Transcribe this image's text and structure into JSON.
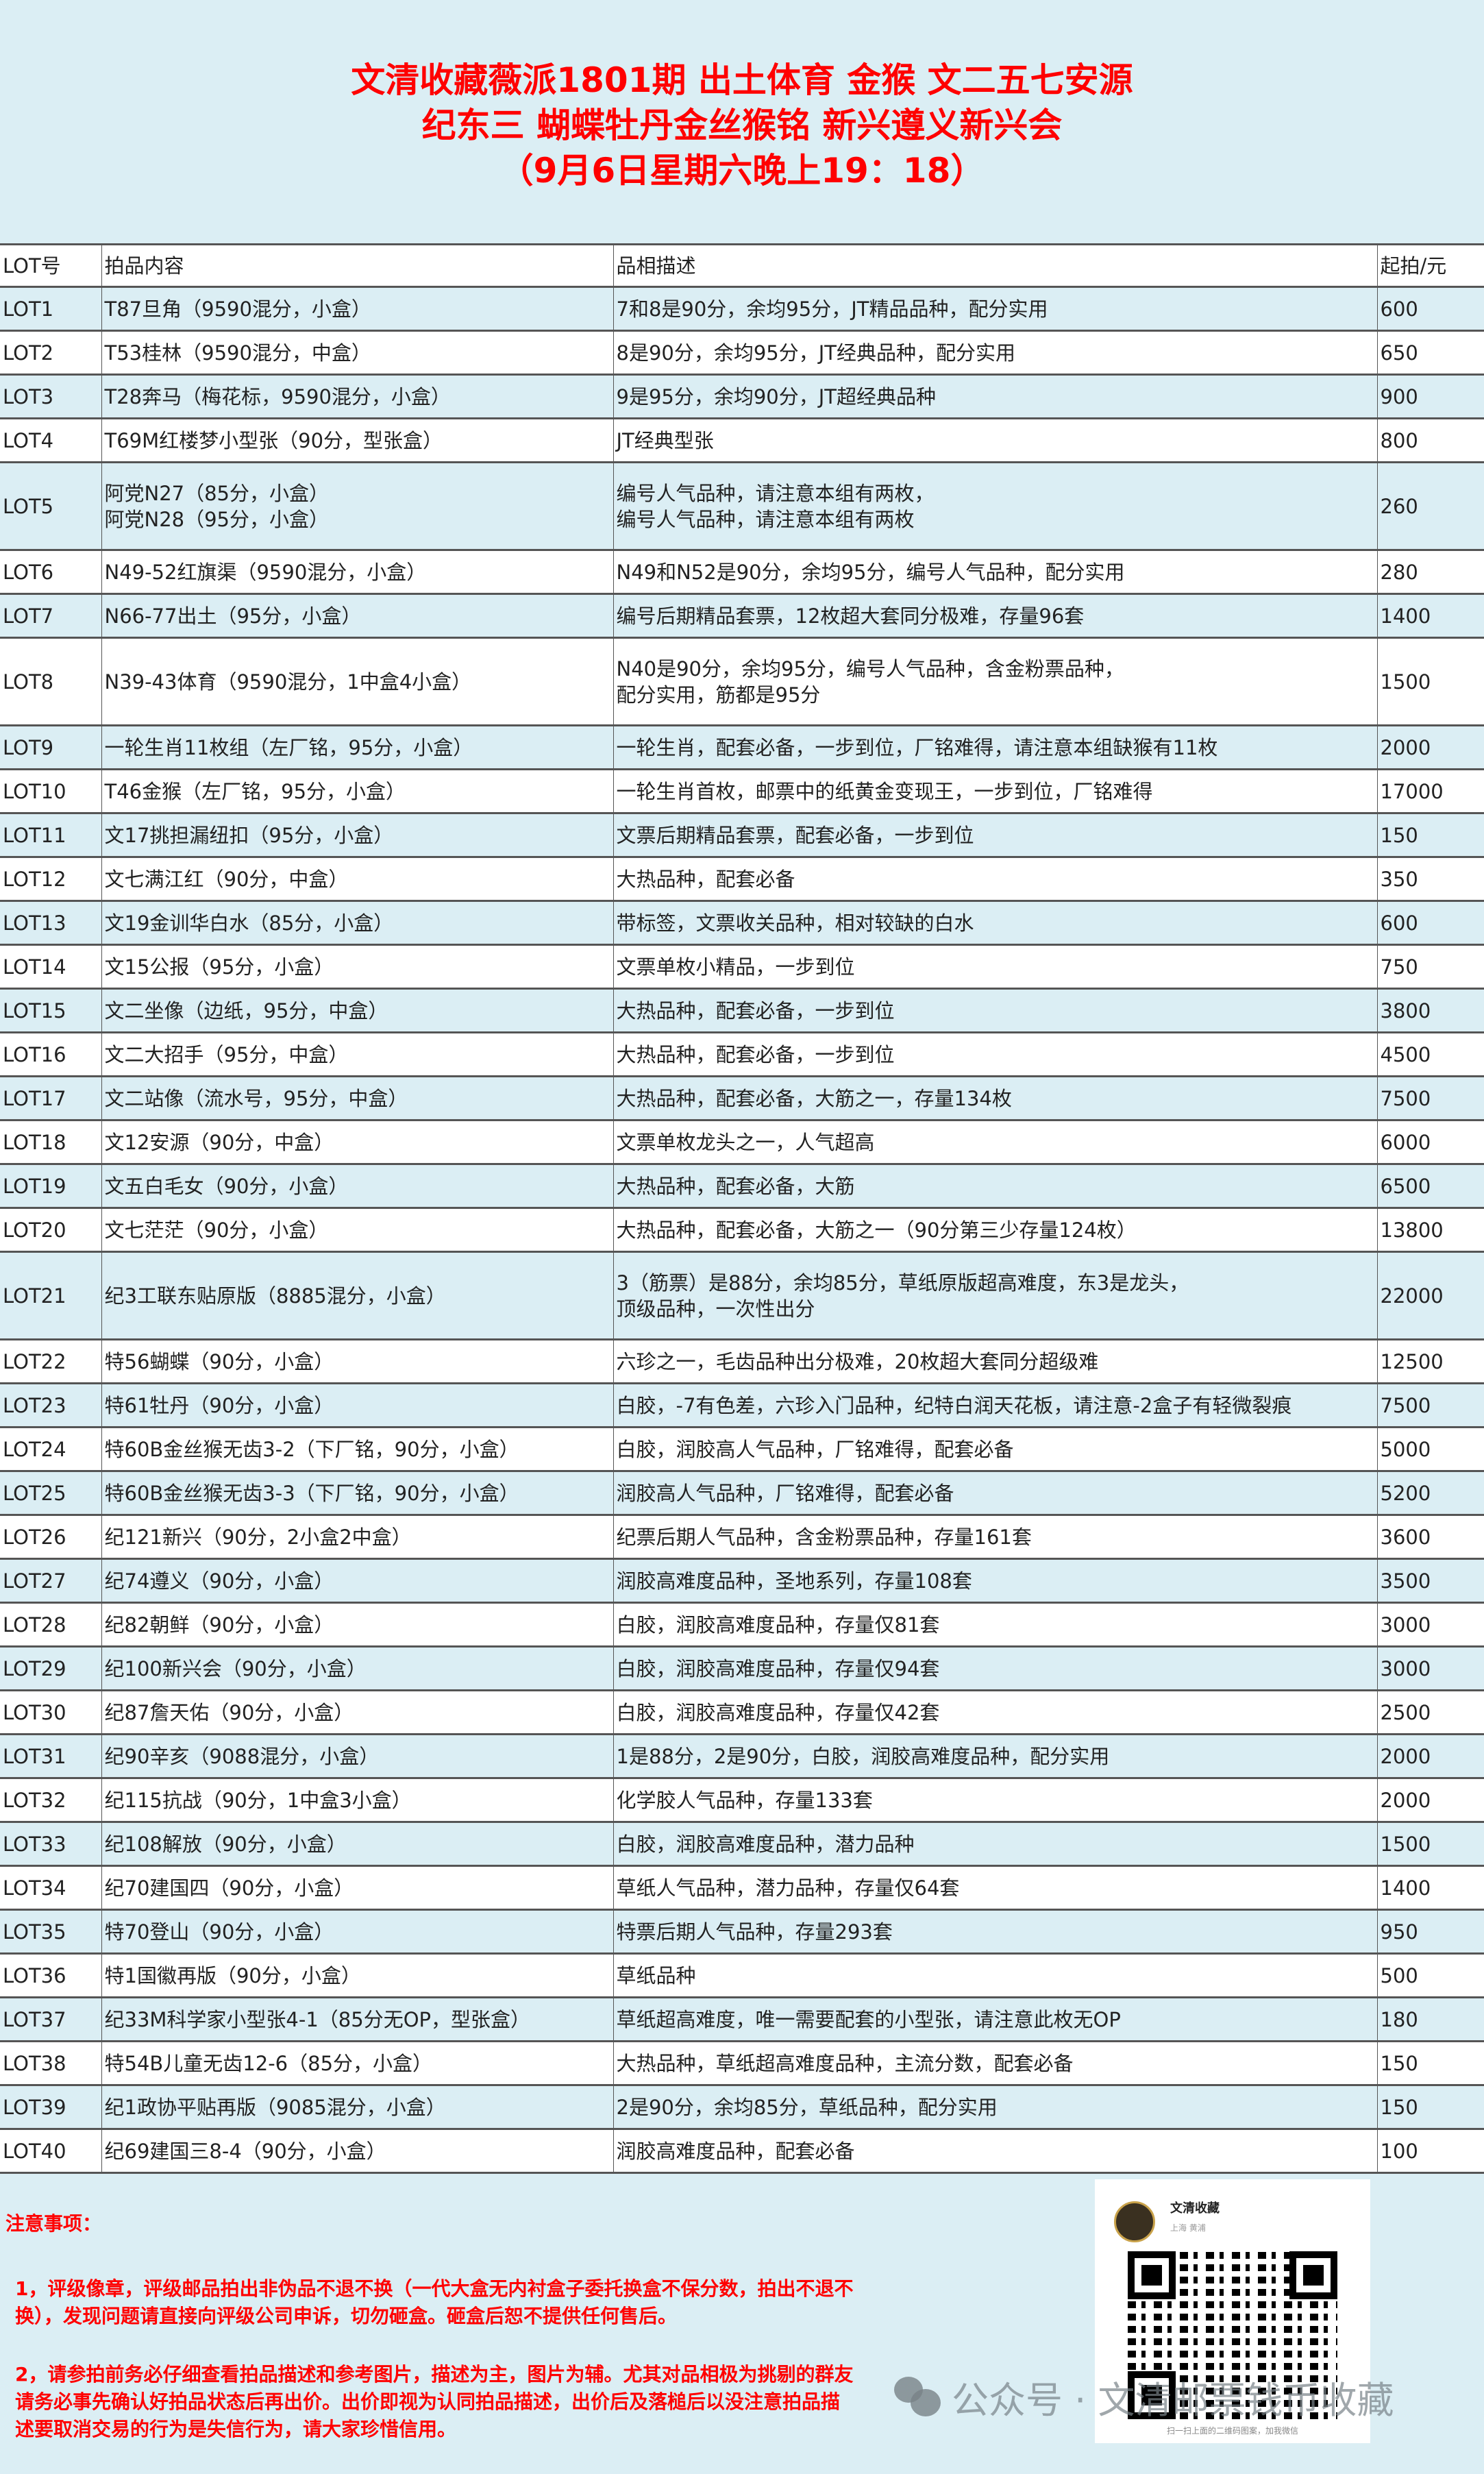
{
  "title": {
    "line1": "文清收藏薇派1801期  出土体育 金猴 文二五七安源",
    "line2": "纪东三 蝴蝶牡丹金丝猴铭 新兴遵义新兴会",
    "line3": "（9月6日星期六晚上19：18）"
  },
  "table": {
    "headers": [
      "LOT号",
      "拍品内容",
      "品相描述",
      "起拍/元"
    ],
    "rows": [
      {
        "lot": "LOT1",
        "item": [
          "T87旦角（9590混分，小盒）"
        ],
        "desc": [
          "7和8是90分，余均95分，JT精品品种，配分实用"
        ],
        "price": "600"
      },
      {
        "lot": "LOT2",
        "item": [
          "T53桂林（9590混分，中盒）"
        ],
        "desc": [
          "8是90分，余均95分，JT经典品种，配分实用"
        ],
        "price": "650"
      },
      {
        "lot": "LOT3",
        "item": [
          "T28奔马（梅花标，9590混分，小盒）"
        ],
        "desc": [
          "9是95分，余均90分，JT超经典品种"
        ],
        "price": "900"
      },
      {
        "lot": "LOT4",
        "item": [
          "T69M红楼梦小型张（90分，型张盒）"
        ],
        "desc": [
          "JT经典型张"
        ],
        "price": "800"
      },
      {
        "lot": "LOT5",
        "item": [
          "阿党N27（85分，小盒）",
          "阿党N28（95分，小盒）"
        ],
        "desc": [
          "编号人气品种，请注意本组有两枚，",
          "编号人气品种，请注意本组有两枚"
        ],
        "price": "260"
      },
      {
        "lot": "LOT6",
        "item": [
          "N49-52红旗渠（9590混分，小盒）"
        ],
        "desc": [
          "N49和N52是90分，余均95分，编号人气品种，配分实用"
        ],
        "price": "280"
      },
      {
        "lot": "LOT7",
        "item": [
          "N66-77出土（95分，小盒）"
        ],
        "desc": [
          "编号后期精品套票，12枚超大套同分极难，存量96套"
        ],
        "price": "1400"
      },
      {
        "lot": "LOT8",
        "item": [
          "N39-43体育（9590混分，1中盒4小盒）"
        ],
        "desc": [
          "N40是90分，余均95分，编号人气品种，含金粉票品种，",
          "配分实用，筋都是95分"
        ],
        "price": "1500"
      },
      {
        "lot": "LOT9",
        "item": [
          "一轮生肖11枚组（左厂铭，95分，小盒）"
        ],
        "desc": [
          "一轮生肖，配套必备，一步到位，厂铭难得，请注意本组缺猴有11枚"
        ],
        "price": "2000"
      },
      {
        "lot": "LOT10",
        "item": [
          "T46金猴（左厂铭，95分，小盒）"
        ],
        "desc": [
          "一轮生肖首枚，邮票中的纸黄金变现王，一步到位，厂铭难得"
        ],
        "price": "17000"
      },
      {
        "lot": "LOT11",
        "item": [
          "文17挑担漏纽扣（95分，小盒）"
        ],
        "desc": [
          "文票后期精品套票，配套必备，一步到位"
        ],
        "price": "150"
      },
      {
        "lot": "LOT12",
        "item": [
          "文七满江红（90分，中盒）"
        ],
        "desc": [
          "大热品种，配套必备"
        ],
        "price": "350"
      },
      {
        "lot": "LOT13",
        "item": [
          "文19金训华白水（85分，小盒）"
        ],
        "desc": [
          "带标签，文票收关品种，相对较缺的白水"
        ],
        "price": "600"
      },
      {
        "lot": "LOT14",
        "item": [
          "文15公报（95分，小盒）"
        ],
        "desc": [
          "文票单枚小精品，一步到位"
        ],
        "price": "750"
      },
      {
        "lot": "LOT15",
        "item": [
          "文二坐像（边纸，95分，中盒）"
        ],
        "desc": [
          "大热品种，配套必备，一步到位"
        ],
        "price": "3800"
      },
      {
        "lot": "LOT16",
        "item": [
          "文二大招手（95分，中盒）"
        ],
        "desc": [
          "大热品种，配套必备，一步到位"
        ],
        "price": "4500"
      },
      {
        "lot": "LOT17",
        "item": [
          "文二站像（流水号，95分，中盒）"
        ],
        "desc": [
          "大热品种，配套必备，大筋之一，存量134枚"
        ],
        "price": "7500"
      },
      {
        "lot": "LOT18",
        "item": [
          "文12安源（90分，中盒）"
        ],
        "desc": [
          "文票单枚龙头之一，人气超高"
        ],
        "price": "6000"
      },
      {
        "lot": "LOT19",
        "item": [
          "文五白毛女（90分，小盒）"
        ],
        "desc": [
          "大热品种，配套必备，大筋"
        ],
        "price": "6500"
      },
      {
        "lot": "LOT20",
        "item": [
          "文七茫茫（90分，小盒）"
        ],
        "desc": [
          "大热品种，配套必备，大筋之一（90分第三少存量124枚）"
        ],
        "price": "13800"
      },
      {
        "lot": "LOT21",
        "item": [
          "纪3工联东贴原版（8885混分，小盒）"
        ],
        "desc": [
          "3（筋票）是88分，余均85分，草纸原版超高难度，东3是龙头，",
          "顶级品种，一次性出分"
        ],
        "price": "22000"
      },
      {
        "lot": "LOT22",
        "item": [
          "特56蝴蝶（90分，小盒）"
        ],
        "desc": [
          "六珍之一，毛齿品种出分极难，20枚超大套同分超级难"
        ],
        "price": "12500"
      },
      {
        "lot": "LOT23",
        "item": [
          "特61牡丹（90分，小盒）"
        ],
        "desc": [
          "白胶，-7有色差，六珍入门品种，纪特白润天花板，请注意-2盒子有轻微裂痕"
        ],
        "price": "7500"
      },
      {
        "lot": "LOT24",
        "item": [
          "特60B金丝猴无齿3-2（下厂铭，90分，小盒）"
        ],
        "desc": [
          "白胶，润胶高人气品种，厂铭难得，配套必备"
        ],
        "price": "5000"
      },
      {
        "lot": "LOT25",
        "item": [
          "特60B金丝猴无齿3-3（下厂铭，90分，小盒）"
        ],
        "desc": [
          "润胶高人气品种，厂铭难得，配套必备"
        ],
        "price": "5200"
      },
      {
        "lot": "LOT26",
        "item": [
          "纪121新兴（90分，2小盒2中盒）"
        ],
        "desc": [
          "纪票后期人气品种，含金粉票品种，存量161套"
        ],
        "price": "3600"
      },
      {
        "lot": "LOT27",
        "item": [
          "纪74遵义（90分，小盒）"
        ],
        "desc": [
          "润胶高难度品种，圣地系列，存量108套"
        ],
        "price": "3500"
      },
      {
        "lot": "LOT28",
        "item": [
          "纪82朝鲜（90分，小盒）"
        ],
        "desc": [
          "白胶，润胶高难度品种，存量仅81套"
        ],
        "price": "3000"
      },
      {
        "lot": "LOT29",
        "item": [
          "纪100新兴会（90分，小盒）"
        ],
        "desc": [
          "白胶，润胶高难度品种，存量仅94套"
        ],
        "price": "3000"
      },
      {
        "lot": "LOT30",
        "item": [
          "纪87詹天佑（90分，小盒）"
        ],
        "desc": [
          "白胶，润胶高难度品种，存量仅42套"
        ],
        "price": "2500"
      },
      {
        "lot": "LOT31",
        "item": [
          "纪90辛亥（9088混分，小盒）"
        ],
        "desc": [
          "1是88分，2是90分，白胶，润胶高难度品种，配分实用"
        ],
        "price": "2000"
      },
      {
        "lot": "LOT32",
        "item": [
          "纪115抗战（90分，1中盒3小盒）"
        ],
        "desc": [
          "化学胶人气品种，存量133套"
        ],
        "price": "2000"
      },
      {
        "lot": "LOT33",
        "item": [
          "纪108解放（90分，小盒）"
        ],
        "desc": [
          "白胶，润胶高难度品种，潜力品种"
        ],
        "price": "1500"
      },
      {
        "lot": "LOT34",
        "item": [
          "纪70建国四（90分，小盒）"
        ],
        "desc": [
          "草纸人气品种，潜力品种，存量仅64套"
        ],
        "price": "1400"
      },
      {
        "lot": "LOT35",
        "item": [
          "特70登山（90分，小盒）"
        ],
        "desc": [
          "特票后期人气品种，存量293套"
        ],
        "price": "950"
      },
      {
        "lot": "LOT36",
        "item": [
          "特1国徽再版（90分，小盒）"
        ],
        "desc": [
          "草纸品种"
        ],
        "price": "500"
      },
      {
        "lot": "LOT37",
        "item": [
          "纪33M科学家小型张4-1（85分无OP，型张盒）"
        ],
        "desc": [
          "草纸超高难度，唯一需要配套的小型张，请注意此枚无OP"
        ],
        "price": "180"
      },
      {
        "lot": "LOT38",
        "item": [
          "特54B儿童无齿12-6（85分，小盒）"
        ],
        "desc": [
          "大热品种，草纸超高难度品种，主流分数，配套必备"
        ],
        "price": "150"
      },
      {
        "lot": "LOT39",
        "item": [
          "纪1政协平贴再版（9085混分，小盒）"
        ],
        "desc": [
          "2是90分，余均85分，草纸品种，配分实用"
        ],
        "price": "150"
      },
      {
        "lot": "LOT40",
        "item": [
          "纪69建国三8-4（90分，小盒）"
        ],
        "desc": [
          "润胶高难度品种，配套必备"
        ],
        "price": "100"
      }
    ]
  },
  "notes": {
    "title": "注意事项：",
    "items": [
      "1，评级像章，评级邮品拍出非伪品不退不换（一代大盒无内衬盒子委托换盒不保分数，拍出不退不换），发现问题请直接向评级公司申诉，切勿砸盒。砸盒后恕不提供任何售后。",
      "2，请参拍前务必仔细查看拍品描述和参考图片，描述为主，图片为辅。尤其对品相极为挑剔的群友请务必事先确认好拍品状态后再出价。出价即视为认同拍品描述，出价后及落槌后以没注意拍品描述要取消交易的行为是失信行为，请大家珍惜信用。"
    ]
  },
  "qr": {
    "name": "文清收藏",
    "location": "上海 黄浦",
    "caption": "扫一扫上面的二维码图案，加我微信"
  },
  "watermark": {
    "text": "公众号 · 文清邮票钱币收藏",
    "icon": "wechat-icon"
  },
  "colors": {
    "title": "#ff0000",
    "row_alt": "#dbeef4",
    "background": "#dbeef4"
  }
}
